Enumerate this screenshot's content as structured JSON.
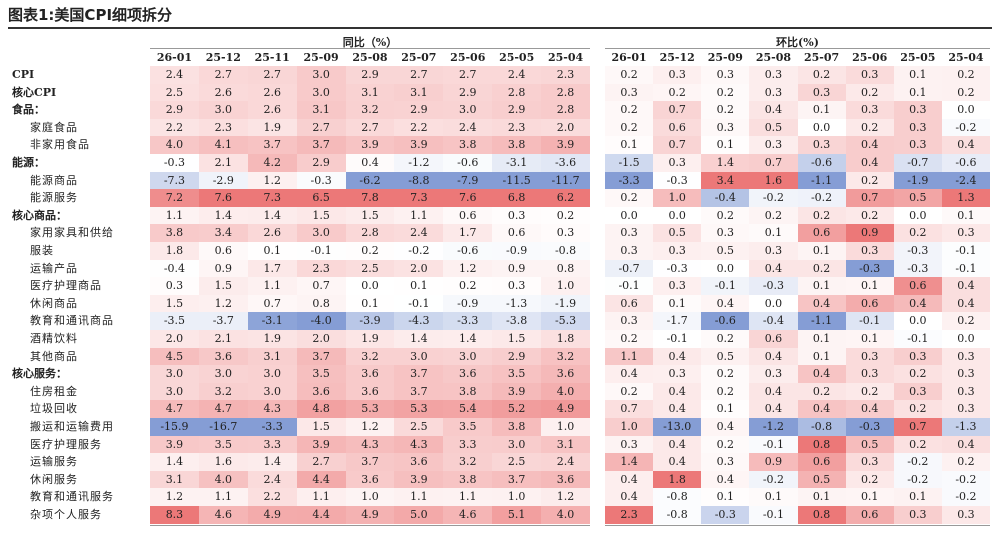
{
  "title": "图表1:美国CPI细项拆分",
  "table": {
    "yoy_header": "同比（%）",
    "mom_header": "环比(%)",
    "yoy_columns": [
      "26-01",
      "25-12",
      "25-11",
      "25-09",
      "25-08",
      "25-07",
      "25-06",
      "25-05",
      "25-04"
    ],
    "mom_columns": [
      "26-01",
      "25-12",
      "25-09",
      "25-08",
      "25-07",
      "25-06",
      "25-05",
      "25-04"
    ],
    "rows": [
      {
        "label": "CPI",
        "yoy": [
          "2.4",
          "2.7",
          "2.7",
          "3.0",
          "2.9",
          "2.7",
          "2.7",
          "2.4",
          "2.3"
        ],
        "mom": [
          "0.2",
          "0.3",
          "0.3",
          "0.3",
          "0.2",
          "0.3",
          "0.1",
          "0.2"
        ]
      },
      {
        "label": "核心CPI",
        "yoy": [
          "2.5",
          "2.6",
          "2.6",
          "3.0",
          "3.1",
          "3.1",
          "2.9",
          "2.8",
          "2.8"
        ],
        "mom": [
          "0.3",
          "0.2",
          "0.2",
          "0.3",
          "0.3",
          "0.2",
          "0.1",
          "0.2"
        ]
      },
      {
        "label": "食品：",
        "yoy": [
          "2.9",
          "3.0",
          "2.6",
          "3.1",
          "3.2",
          "2.9",
          "3.0",
          "2.9",
          "2.8"
        ],
        "mom": [
          "0.2",
          "0.7",
          "0.2",
          "0.4",
          "0.1",
          "0.3",
          "0.3",
          "0.0"
        ]
      },
      {
        "label": "家庭食品",
        "yoy": [
          "2.2",
          "2.3",
          "1.9",
          "2.7",
          "2.7",
          "2.2",
          "2.4",
          "2.3",
          "2.0"
        ],
        "mom": [
          "0.2",
          "0.6",
          "0.3",
          "0.5",
          "0.0",
          "0.2",
          "0.3",
          "-0.2"
        ]
      },
      {
        "label": "非家用食品",
        "yoy": [
          "4.0",
          "4.1",
          "3.7",
          "3.7",
          "3.9",
          "3.9",
          "3.8",
          "3.8",
          "3.9"
        ],
        "mom": [
          "0.1",
          "0.7",
          "0.1",
          "0.3",
          "0.3",
          "0.4",
          "0.3",
          "0.4"
        ]
      },
      {
        "label": "能源：",
        "yoy": [
          "-0.3",
          "2.1",
          "4.2",
          "2.9",
          "0.4",
          "-1.2",
          "-0.6",
          "-3.1",
          "-3.6"
        ],
        "mom": [
          "-1.5",
          "0.3",
          "1.4",
          "0.7",
          "-0.6",
          "0.4",
          "-0.7",
          "-0.6"
        ]
      },
      {
        "label": "能源商品",
        "yoy": [
          "-7.3",
          "-2.9",
          "1.2",
          "-0.3",
          "-6.2",
          "-8.8",
          "-7.9",
          "-11.5",
          "-11.7"
        ],
        "mom": [
          "-3.3",
          "-0.3",
          "3.4",
          "1.6",
          "-1.1",
          "0.2",
          "-1.9",
          "-2.4"
        ]
      },
      {
        "label": "能源服务",
        "yoy": [
          "7.2",
          "7.6",
          "7.3",
          "6.5",
          "7.8",
          "7.3",
          "7.6",
          "6.8",
          "6.2"
        ],
        "mom": [
          "0.2",
          "1.0",
          "-0.4",
          "-0.2",
          "-0.2",
          "0.7",
          "0.5",
          "1.3"
        ]
      },
      {
        "label": "核心商品：",
        "yoy": [
          "1.1",
          "1.4",
          "1.4",
          "1.5",
          "1.5",
          "1.1",
          "0.6",
          "0.3",
          "0.2"
        ],
        "mom": [
          "0.0",
          "0.0",
          "0.2",
          "0.2",
          "0.2",
          "0.2",
          "0.0",
          "0.1"
        ]
      },
      {
        "label": "家用家具和供给",
        "yoy": [
          "3.8",
          "3.4",
          "2.6",
          "3.0",
          "2.8",
          "2.4",
          "1.7",
          "0.6",
          "0.3"
        ],
        "mom": [
          "0.3",
          "0.5",
          "0.3",
          "0.1",
          "0.6",
          "0.9",
          "0.2",
          "0.3"
        ]
      },
      {
        "label": "服装",
        "yoy": [
          "1.8",
          "0.6",
          "0.1",
          "-0.1",
          "0.2",
          "-0.2",
          "-0.6",
          "-0.9",
          "-0.8"
        ],
        "mom": [
          "0.3",
          "0.3",
          "0.5",
          "0.3",
          "0.1",
          "0.3",
          "-0.3",
          "-0.1"
        ]
      },
      {
        "label": "运输产品",
        "yoy": [
          "-0.4",
          "0.9",
          "1.7",
          "2.3",
          "2.5",
          "2.0",
          "1.2",
          "0.9",
          "0.8"
        ],
        "mom": [
          "-0.7",
          "-0.3",
          "0.0",
          "0.4",
          "0.2",
          "-0.3",
          "-0.3",
          "-0.1"
        ]
      },
      {
        "label": "医疗护理商品",
        "yoy": [
          "0.3",
          "1.5",
          "1.1",
          "0.7",
          "0.0",
          "0.1",
          "0.2",
          "0.3",
          "1.0"
        ],
        "mom": [
          "-0.1",
          "0.3",
          "-0.1",
          "-0.3",
          "0.1",
          "0.1",
          "0.6",
          "0.4"
        ]
      },
      {
        "label": "休闲商品",
        "yoy": [
          "1.5",
          "1.2",
          "0.7",
          "0.8",
          "0.1",
          "-0.1",
          "-0.9",
          "-1.3",
          "-1.9"
        ],
        "mom": [
          "0.6",
          "0.1",
          "0.4",
          "0.0",
          "0.4",
          "0.6",
          "0.4",
          "0.4"
        ]
      },
      {
        "label": "教育和通讯商品",
        "yoy": [
          "-3.5",
          "-3.7",
          "-3.1",
          "-4.0",
          "-3.9",
          "-4.3",
          "-3.3",
          "-3.8",
          "-5.3"
        ],
        "mom": [
          "0.3",
          "-1.7",
          "-0.6",
          "-0.4",
          "-1.1",
          "-0.1",
          "0.0",
          "0.2"
        ]
      },
      {
        "label": "酒精饮料",
        "yoy": [
          "2.0",
          "2.1",
          "1.9",
          "2.0",
          "1.9",
          "1.4",
          "1.4",
          "1.5",
          "1.8"
        ],
        "mom": [
          "0.2",
          "-0.1",
          "0.2",
          "0.6",
          "0.1",
          "0.1",
          "-0.1",
          "0.0"
        ]
      },
      {
        "label": "其他商品",
        "yoy": [
          "4.5",
          "3.6",
          "3.1",
          "3.7",
          "3.2",
          "3.0",
          "3.0",
          "2.9",
          "3.2"
        ],
        "mom": [
          "1.1",
          "0.4",
          "0.5",
          "0.4",
          "0.1",
          "0.3",
          "0.3",
          "0.3"
        ]
      },
      {
        "label": "核心服务：",
        "yoy": [
          "3.0",
          "3.0",
          "3.0",
          "3.5",
          "3.6",
          "3.7",
          "3.6",
          "3.5",
          "3.6"
        ],
        "mom": [
          "0.4",
          "0.3",
          "0.2",
          "0.3",
          "0.4",
          "0.3",
          "0.2",
          "0.3"
        ]
      },
      {
        "label": "住房租金",
        "yoy": [
          "3.0",
          "3.2",
          "3.0",
          "3.6",
          "3.6",
          "3.7",
          "3.8",
          "3.9",
          "4.0"
        ],
        "mom": [
          "0.2",
          "0.4",
          "0.2",
          "0.4",
          "0.2",
          "0.2",
          "0.3",
          "0.3"
        ]
      },
      {
        "label": "垃圾回收",
        "yoy": [
          "4.7",
          "4.7",
          "4.3",
          "4.8",
          "5.3",
          "5.3",
          "5.4",
          "5.2",
          "4.9"
        ],
        "mom": [
          "0.7",
          "0.4",
          "0.1",
          "0.4",
          "0.4",
          "0.4",
          "0.2",
          "0.3"
        ]
      },
      {
        "label": "搬运和运输费用",
        "yoy": [
          "-15.9",
          "-16.7",
          "-3.3",
          "1.5",
          "1.2",
          "2.5",
          "3.5",
          "3.8",
          "1.0"
        ],
        "mom": [
          "1.0",
          "-13.0",
          "0.4",
          "-1.2",
          "-0.8",
          "-0.3",
          "0.7",
          "-1.3"
        ]
      },
      {
        "label": "医疗护理服务",
        "yoy": [
          "3.9",
          "3.5",
          "3.3",
          "3.9",
          "4.3",
          "4.3",
          "3.3",
          "3.0",
          "3.1"
        ],
        "mom": [
          "0.3",
          "0.4",
          "0.2",
          "-0.1",
          "0.8",
          "0.5",
          "0.2",
          "0.4"
        ]
      },
      {
        "label": "运输服务",
        "yoy": [
          "1.4",
          "1.6",
          "1.4",
          "2.7",
          "3.7",
          "3.6",
          "3.2",
          "2.5",
          "2.4"
        ],
        "mom": [
          "1.4",
          "0.4",
          "0.3",
          "0.9",
          "0.6",
          "0.3",
          "-0.2",
          "0.2"
        ]
      },
      {
        "label": "休闲服务",
        "yoy": [
          "3.1",
          "4.0",
          "2.4",
          "4.4",
          "3.6",
          "3.9",
          "3.8",
          "3.7",
          "3.6"
        ],
        "mom": [
          "0.4",
          "1.8",
          "0.4",
          "-0.2",
          "0.5",
          "0.2",
          "-0.2",
          "-0.2"
        ]
      },
      {
        "label": "教育和通讯服务",
        "yoy": [
          "1.2",
          "1.1",
          "2.2",
          "1.1",
          "1.0",
          "1.1",
          "1.1",
          "1.0",
          "1.2"
        ],
        "mom": [
          "0.4",
          "-0.8",
          "0.1",
          "0.1",
          "0.1",
          "0.1",
          "0.1",
          "-0.2"
        ]
      },
      {
        "label": "杂项个人服务",
        "yoy": [
          "8.3",
          "4.6",
          "4.9",
          "4.4",
          "4.9",
          "5.0",
          "4.6",
          "5.1",
          "4.0"
        ],
        "mom": [
          "2.3",
          "-0.8",
          "-0.3",
          "-0.1",
          "0.8",
          "0.6",
          "0.3",
          "0.3"
        ]
      }
    ]
  }
}
